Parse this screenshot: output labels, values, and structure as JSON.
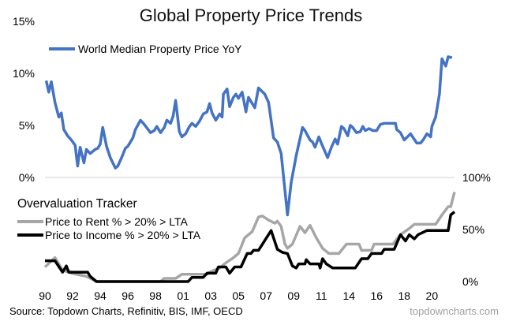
{
  "chart_data": {
    "type": "line",
    "title": "Global Property Price Trends",
    "xlim": [
      1990,
      2022.6
    ],
    "x_ticks": [
      {
        "value": 1990,
        "label": "90"
      },
      {
        "value": 1992.2,
        "label": "92"
      },
      {
        "value": 1994.4,
        "label": "94"
      },
      {
        "value": 1996.6,
        "label": "96"
      },
      {
        "value": 1998.8,
        "label": "98"
      },
      {
        "value": 2001.0,
        "label": "01"
      },
      {
        "value": 2003.2,
        "label": "03"
      },
      {
        "value": 2005.4,
        "label": "05"
      },
      {
        "value": 2007.6,
        "label": "07"
      },
      {
        "value": 2009.8,
        "label": "09"
      },
      {
        "value": 2012.0,
        "label": "11"
      },
      {
        "value": 2014.2,
        "label": "14"
      },
      {
        "value": 2016.4,
        "label": "16"
      },
      {
        "value": 2018.6,
        "label": "18"
      },
      {
        "value": 2020.8,
        "label": "20"
      }
    ],
    "y_left": {
      "ylim": [
        0,
        15
      ],
      "ticks": [
        {
          "value": 0,
          "label": "0%"
        },
        {
          "value": 5,
          "label": "5%"
        },
        {
          "value": 10,
          "label": "10%"
        },
        {
          "value": 15,
          "label": "15%"
        }
      ]
    },
    "y_right": {
      "ylim": [
        0,
        100
      ],
      "ticks": [
        {
          "value": 0,
          "label": "0%"
        },
        {
          "value": 50,
          "label": "50%"
        },
        {
          "value": 100,
          "label": "100%"
        }
      ]
    },
    "grid": "zero line only",
    "panel_title": "Overvaluation Tracker",
    "series": [
      {
        "name": "World Median Property Price YoY",
        "axis": "left",
        "color": "#4472C4",
        "x": [
          1990.1,
          1990.3,
          1990.5,
          1990.8,
          1991.1,
          1991.3,
          1991.5,
          1991.8,
          1992.1,
          1992.4,
          1992.6,
          1992.8,
          1993.1,
          1993.3,
          1993.6,
          1994.0,
          1994.2,
          1994.4,
          1994.6,
          1994.9,
          1995.2,
          1995.6,
          1995.8,
          1996.1,
          1996.4,
          1996.6,
          1997.0,
          1997.2,
          1997.6,
          1997.9,
          1998.4,
          1998.7,
          1998.9,
          1999.2,
          1999.5,
          1999.7,
          2000.0,
          2000.2,
          2000.4,
          2000.7,
          2000.9,
          2001.2,
          2001.5,
          2001.7,
          2002.0,
          2002.3,
          2002.6,
          2002.9,
          2003.1,
          2003.3,
          2003.6,
          2003.9,
          2004.1,
          2004.2,
          2004.5,
          2004.7,
          2005.0,
          2005.2,
          2005.4,
          2005.7,
          2006.0,
          2006.2,
          2006.7,
          2007.0,
          2007.5,
          2007.8,
          2008.2,
          2008.5,
          2008.8,
          2009.3,
          2009.6,
          2010.0,
          2010.5,
          2010.7,
          2011.1,
          2011.3,
          2011.5,
          2011.8,
          2012.0,
          2012.5,
          2012.8,
          2013.1,
          2013.3,
          2013.6,
          2013.8,
          2014.1,
          2014.3,
          2014.5,
          2014.8,
          2015.1,
          2015.3,
          2015.5,
          2015.8,
          2016.1,
          2016.4,
          2016.7,
          2017.0,
          2017.6,
          2017.9,
          2018.0,
          2018.3,
          2018.6,
          2019.1,
          2019.6,
          2019.9,
          2020.1,
          2020.4,
          2020.7,
          2020.8,
          2021.1,
          2021.4,
          2021.6,
          2021.9,
          2022.1,
          2022.4
        ],
        "values": [
          9.3,
          8.2,
          9.2,
          7.2,
          5.8,
          6.2,
          4.6,
          4.0,
          3.6,
          3.1,
          1.1,
          2.9,
          1.4,
          2.7,
          2.3,
          2.7,
          2.8,
          3.2,
          4.8,
          3.0,
          1.9,
          0.9,
          1.1,
          1.9,
          2.8,
          3.0,
          3.8,
          4.6,
          5.5,
          5.1,
          4.3,
          4.5,
          4.9,
          4.3,
          4.8,
          5.5,
          5.2,
          5.9,
          7.4,
          4.4,
          3.9,
          4.2,
          4.9,
          5.2,
          4.9,
          5.4,
          6.1,
          6.3,
          7.1,
          6.2,
          5.5,
          6.1,
          5.8,
          8.0,
          8.5,
          6.8,
          7.7,
          8.0,
          7.6,
          8.2,
          6.3,
          7.7,
          6.7,
          8.6,
          8.0,
          7.2,
          3.8,
          3.4,
          2.3,
          -3.6,
          -0.5,
          2.1,
          4.8,
          4.5,
          3.6,
          3.4,
          2.9,
          3.9,
          3.3,
          1.9,
          2.9,
          3.7,
          3.2,
          4.9,
          4.7,
          4.0,
          5.0,
          4.8,
          4.3,
          4.4,
          4.9,
          4.5,
          4.7,
          4.5,
          4.5,
          5.1,
          5.2,
          5.2,
          5.2,
          4.6,
          4.3,
          3.6,
          4.2,
          3.3,
          3.3,
          3.6,
          4.2,
          3.9,
          4.9,
          5.8,
          8.0,
          11.4,
          10.7,
          11.6,
          11.5
        ]
      },
      {
        "name": "Price to Rent % > 20% > LTA",
        "axis": "right",
        "color": "#A6A6A6",
        "x": [
          1990.0,
          1990.8,
          1991.4,
          1992.1,
          1993.3,
          1994.1,
          1999.2,
          1999.5,
          2000.4,
          2000.9,
          2002.9,
          2003.1,
          2003.9,
          2004.4,
          2004.9,
          2005.4,
          2005.9,
          2006.5,
          2007.0,
          2007.3,
          2007.8,
          2008.3,
          2008.5,
          2008.8,
          2009.1,
          2009.3,
          2009.7,
          2010.3,
          2010.7,
          2011.1,
          2011.6,
          2012.1,
          2012.6,
          2013.4,
          2014.0,
          2015.0,
          2015.2,
          2016.0,
          2016.2,
          2017.7,
          2018.3,
          2019.0,
          2019.4,
          2021.1,
          2021.6,
          2022.1,
          2022.3,
          2022.6
        ],
        "values": [
          14,
          23,
          11,
          8,
          5,
          0,
          0,
          3,
          3,
          7,
          7,
          9,
          13,
          18,
          22,
          27,
          42,
          48,
          62,
          63,
          59,
          56,
          58,
          53,
          36,
          32,
          36,
          53,
          47,
          54,
          42,
          32,
          27,
          27,
          36,
          36,
          30,
          30,
          36,
          36,
          45,
          51,
          55,
          55,
          64,
          72,
          72,
          86
        ]
      },
      {
        "name": "Price to Income % > 20% > LTA",
        "axis": "right",
        "color": "#000000",
        "x": [
          1990.0,
          1990.8,
          1991.4,
          1991.7,
          1991.9,
          1993.4,
          1993.6,
          1994.1,
          2001.4,
          2001.7,
          2002.6,
          2002.9,
          2003.6,
          2003.8,
          2004.4,
          2004.7,
          2005.1,
          2005.6,
          2006.1,
          2006.4,
          2006.6,
          2007.0,
          2008.0,
          2008.5,
          2008.9,
          2009.3,
          2009.7,
          2010.0,
          2010.2,
          2010.7,
          2010.8,
          2011.1,
          2011.8,
          2011.9,
          2012.1,
          2012.4,
          2012.9,
          2014.7,
          2015.2,
          2015.7,
          2016.0,
          2016.8,
          2017.0,
          2017.8,
          2018.3,
          2018.7,
          2019.0,
          2019.4,
          2019.7,
          2020.4,
          2022.1,
          2022.3,
          2022.6
        ],
        "values": [
          20,
          20,
          9,
          15,
          9,
          9,
          5,
          0,
          0,
          4,
          4,
          8,
          8,
          14,
          14,
          8,
          14,
          14,
          27,
          27,
          30,
          30,
          49,
          31,
          28,
          27,
          15,
          13,
          17,
          17,
          21,
          17,
          17,
          13,
          22,
          17,
          13,
          13,
          22,
          22,
          27,
          27,
          31,
          31,
          45,
          39,
          45,
          41,
          45,
          49,
          49,
          64,
          67
        ]
      }
    ],
    "source": "Source: Topdown Charts, Refinitiv, BIS, IMF, OECD",
    "watermark": "topdowncharts.com"
  }
}
